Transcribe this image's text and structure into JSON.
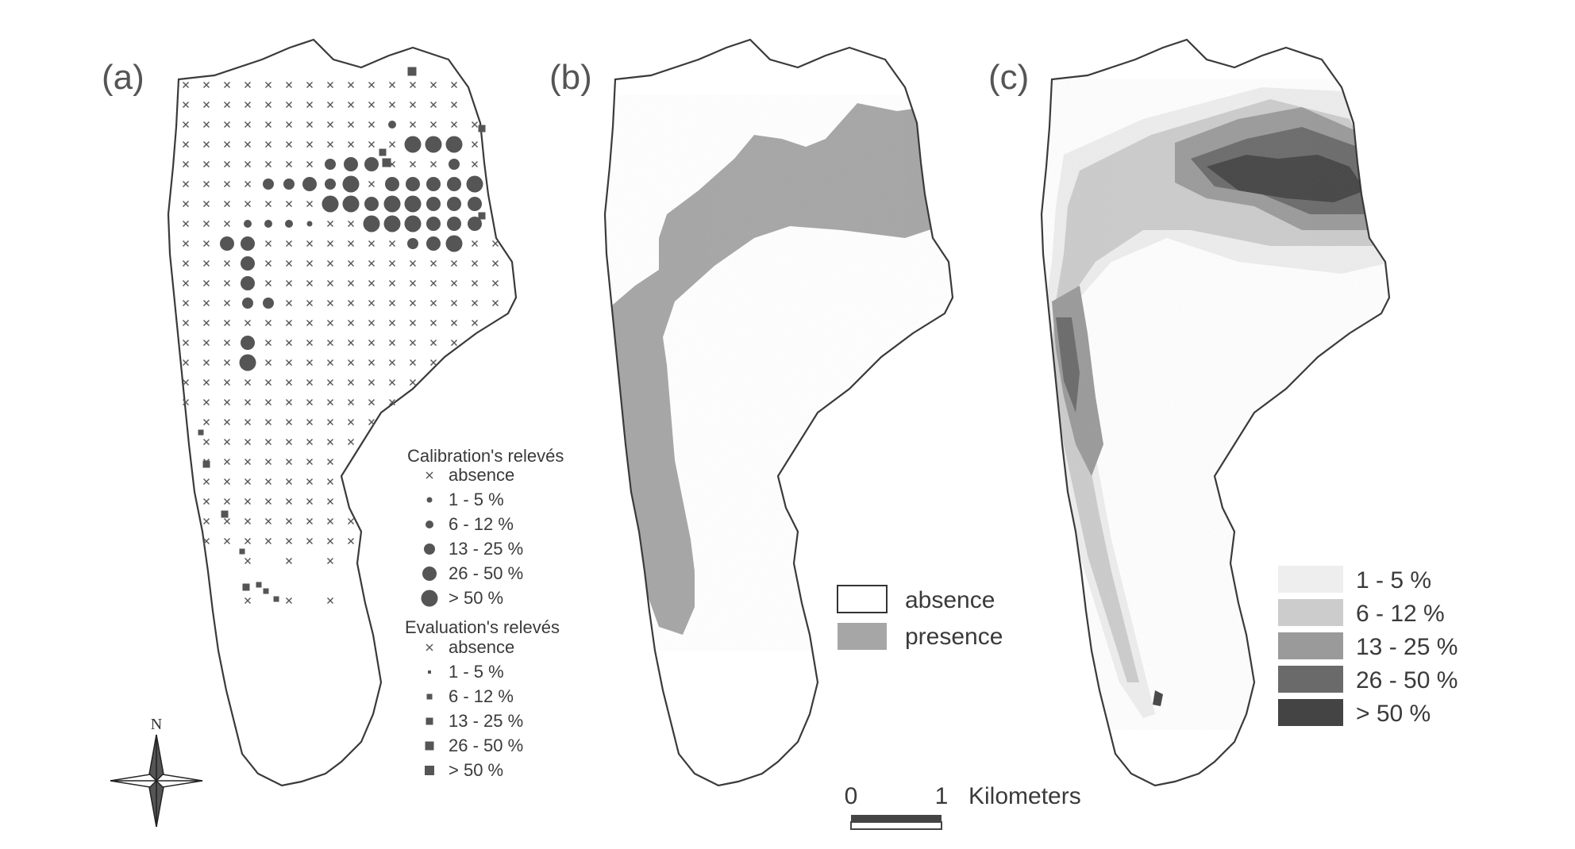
{
  "panels": [
    {
      "label": "(a)"
    },
    {
      "label": "(b)"
    },
    {
      "label": "(c)"
    }
  ],
  "legend_a": {
    "calibration_title": "Calibration's relevés",
    "calibration_items": [
      "absence",
      "1 - 5 %",
      "6 - 12 %",
      "13 - 25 %",
      "26 - 50 %",
      "> 50 %"
    ],
    "evaluation_title": "Evaluation's relevés",
    "evaluation_items": [
      "absence",
      "1 - 5 %",
      "6 - 12 %",
      "13 - 25 %",
      "26 - 50 %",
      "> 50 %"
    ]
  },
  "legend_b": {
    "items": [
      {
        "label": "absence",
        "color": "#ffffff"
      },
      {
        "label": "presence",
        "color": "#a6a6a6"
      }
    ]
  },
  "legend_c": {
    "items": [
      {
        "label": "1 - 5 %",
        "color": "#eeeeee"
      },
      {
        "label": "6 - 12 %",
        "color": "#cccccc"
      },
      {
        "label": "13 - 25 %",
        "color": "#9a9a9a"
      },
      {
        "label": "26 - 50 %",
        "color": "#6a6a6a"
      },
      {
        "label": "> 50 %",
        "color": "#444444"
      }
    ]
  },
  "north_arrow": {
    "label": "N",
    "icon": "compass-rose-icon"
  },
  "scale_bar": {
    "start": "0",
    "end": "1",
    "unit": "Kilometers"
  }
}
